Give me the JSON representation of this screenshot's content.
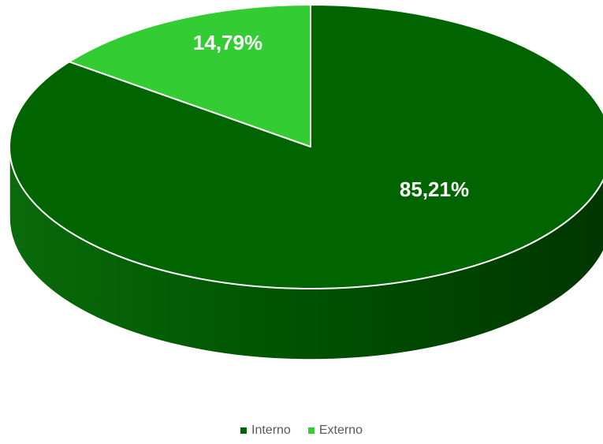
{
  "chart_data": {
    "type": "pie",
    "title": "",
    "categories": [
      "Interno",
      "Externo"
    ],
    "values": [
      85.21,
      14.79
    ],
    "labels": [
      "85,21%",
      "14,79%"
    ],
    "colors": [
      "#006400",
      "#33CC33"
    ],
    "legend_position": "bottom"
  }
}
